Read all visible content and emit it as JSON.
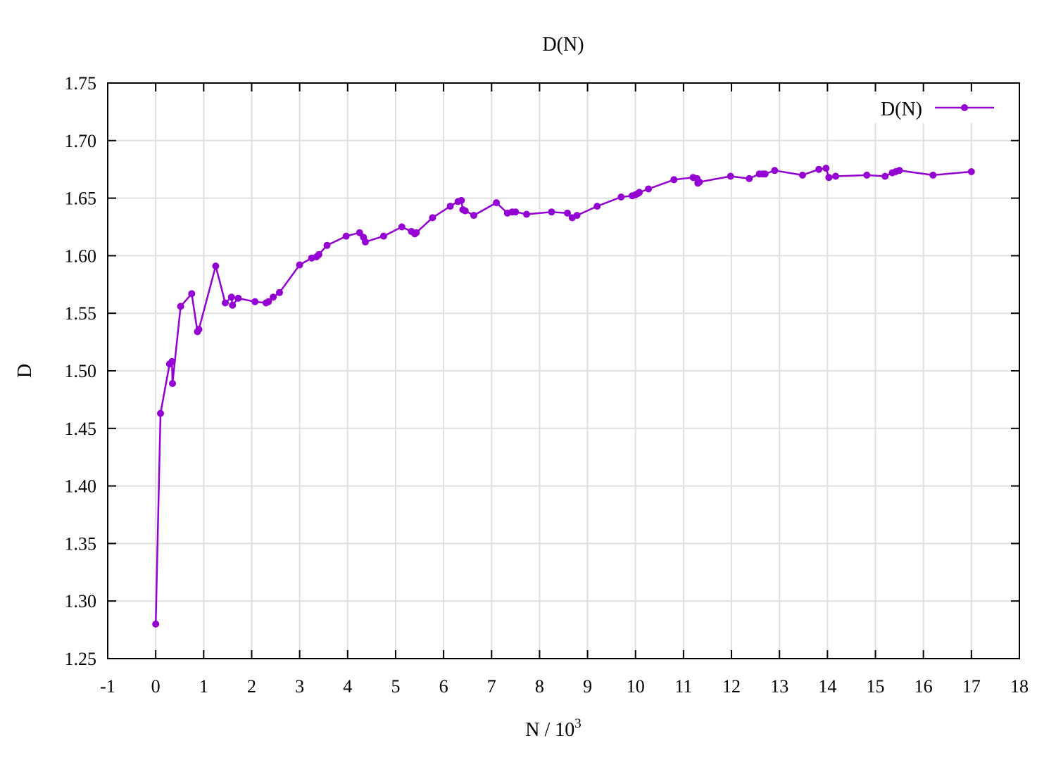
{
  "chart_data": {
    "type": "line",
    "title": "D(N)",
    "xlabel": "N / 10",
    "xlabel_sup": "3",
    "ylabel": "D",
    "xlim": [
      -1,
      18
    ],
    "ylim": [
      1.25,
      1.75
    ],
    "xticks": [
      "-1",
      "0",
      "1",
      "2",
      "3",
      "4",
      "5",
      "6",
      "7",
      "8",
      "9",
      "10",
      "11",
      "12",
      "13",
      "14",
      "15",
      "16",
      "17",
      "18"
    ],
    "yticks": [
      "1.25",
      "1.30",
      "1.35",
      "1.40",
      "1.45",
      "1.50",
      "1.55",
      "1.60",
      "1.65",
      "1.70",
      "1.75"
    ],
    "grid": true,
    "legend_position": "top-right",
    "series": [
      {
        "name": "D(N)",
        "color": "#9400d3",
        "marker": "circle",
        "points": [
          [
            0.0,
            1.28
          ],
          [
            0.1,
            1.463
          ],
          [
            0.29,
            1.506
          ],
          [
            0.34,
            1.508
          ],
          [
            0.35,
            1.489
          ],
          [
            0.52,
            1.556
          ],
          [
            0.75,
            1.567
          ],
          [
            0.87,
            1.534
          ],
          [
            0.9,
            1.536
          ],
          [
            1.25,
            1.591
          ],
          [
            1.45,
            1.559
          ],
          [
            1.58,
            1.564
          ],
          [
            1.6,
            1.557
          ],
          [
            1.72,
            1.563
          ],
          [
            2.07,
            1.56
          ],
          [
            2.3,
            1.559
          ],
          [
            2.35,
            1.56
          ],
          [
            2.45,
            1.564
          ],
          [
            2.58,
            1.568
          ],
          [
            3.0,
            1.592
          ],
          [
            3.25,
            1.598
          ],
          [
            3.35,
            1.599
          ],
          [
            3.4,
            1.601
          ],
          [
            3.57,
            1.609
          ],
          [
            3.97,
            1.617
          ],
          [
            4.25,
            1.62
          ],
          [
            4.33,
            1.616
          ],
          [
            4.37,
            1.612
          ],
          [
            4.75,
            1.617
          ],
          [
            5.13,
            1.625
          ],
          [
            5.33,
            1.621
          ],
          [
            5.4,
            1.619
          ],
          [
            5.43,
            1.62
          ],
          [
            5.77,
            1.633
          ],
          [
            6.14,
            1.643
          ],
          [
            6.3,
            1.647
          ],
          [
            6.37,
            1.648
          ],
          [
            6.4,
            1.64
          ],
          [
            6.45,
            1.639
          ],
          [
            6.63,
            1.635
          ],
          [
            7.1,
            1.646
          ],
          [
            7.33,
            1.637
          ],
          [
            7.43,
            1.638
          ],
          [
            7.5,
            1.638
          ],
          [
            7.73,
            1.636
          ],
          [
            8.25,
            1.638
          ],
          [
            8.58,
            1.637
          ],
          [
            8.68,
            1.633
          ],
          [
            8.78,
            1.635
          ],
          [
            9.2,
            1.643
          ],
          [
            9.7,
            1.651
          ],
          [
            9.93,
            1.652
          ],
          [
            10.0,
            1.653
          ],
          [
            10.05,
            1.654
          ],
          [
            10.08,
            1.655
          ],
          [
            10.27,
            1.658
          ],
          [
            10.8,
            1.666
          ],
          [
            11.2,
            1.668
          ],
          [
            11.28,
            1.667
          ],
          [
            11.3,
            1.663
          ],
          [
            11.33,
            1.664
          ],
          [
            11.98,
            1.669
          ],
          [
            12.37,
            1.667
          ],
          [
            12.58,
            1.671
          ],
          [
            12.65,
            1.671
          ],
          [
            12.7,
            1.671
          ],
          [
            12.9,
            1.674
          ],
          [
            13.48,
            1.67
          ],
          [
            13.82,
            1.675
          ],
          [
            13.97,
            1.676
          ],
          [
            14.03,
            1.668
          ],
          [
            14.17,
            1.669
          ],
          [
            14.82,
            1.67
          ],
          [
            15.2,
            1.669
          ],
          [
            15.35,
            1.672
          ],
          [
            15.42,
            1.673
          ],
          [
            15.5,
            1.674
          ],
          [
            16.2,
            1.67
          ],
          [
            17.0,
            1.673
          ]
        ]
      }
    ]
  }
}
